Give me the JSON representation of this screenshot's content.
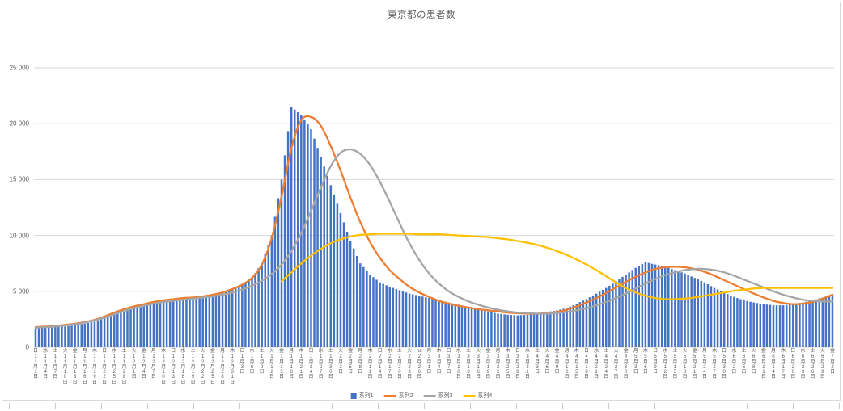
{
  "chart_data": {
    "type": "combo",
    "title": "東京都の患者数",
    "grid": true,
    "legend_position": "bottom",
    "ylim": [
      0,
      25000
    ],
    "y_tick_values": [
      0,
      5000,
      10000,
      15000,
      20000,
      25000
    ],
    "y_tick_labels": [
      "0",
      "5 000",
      "10 000",
      "15 000",
      "20 000",
      "25 000"
    ],
    "x_label_interval_days": 3,
    "x_labels_dow": [
      "日",
      "水",
      "土",
      "火",
      "金",
      "月",
      "木",
      "日",
      "水",
      "土",
      "火",
      "金",
      "月",
      "木",
      "日",
      "水",
      "土",
      "火",
      "金",
      "月",
      "木",
      "日",
      "水",
      "土",
      "火",
      "金",
      "月",
      "木",
      "日",
      "水",
      "土",
      "火",
      "金",
      "月",
      "木",
      "日",
      "水",
      "土",
      "火",
      "ha",
      "月",
      "木",
      "日",
      "水",
      "土",
      "火",
      "金",
      "月",
      "木",
      "日",
      "水",
      "土",
      "火",
      "金",
      "月",
      "木",
      "日",
      "水",
      "土",
      "火",
      "金",
      "月",
      "木",
      "日",
      "水",
      "土",
      "火",
      "金",
      "月",
      "木",
      "日",
      "水",
      "土",
      "火",
      "金",
      "月",
      "木",
      "日",
      "水",
      "土",
      "火",
      "金"
    ],
    "x_labels_date": [
      "11月1日",
      "11月4日",
      "11月7日",
      "11月10日",
      "11月13日",
      "11月16日",
      "11月19日",
      "11月22日",
      "11月25日",
      "11月28日",
      "12月1日",
      "12月4日",
      "12月7日",
      "12月10日",
      "12月13日",
      "12月16日",
      "12月19日",
      "12月22日",
      "12月25日",
      "12月28日",
      "12月31日",
      "1月3日",
      "1月6日",
      "1月9日",
      "1月12日",
      "1月15日",
      "1月18日",
      "1月21日",
      "1月24日",
      "1月27日",
      "1月30日",
      "2月2日",
      "2月5日",
      "2月8日",
      "2月11日",
      "2月14日",
      "2月17日",
      "2月20日",
      "2月23日",
      "2月26日",
      "3月1日",
      "3月4日",
      "3月7日",
      "3月10日",
      "3月13日",
      "3月16日",
      "3月19日",
      "3月22日",
      "3月25日",
      "3月28日",
      "3月31日",
      "4月3日",
      "4月6日",
      "4月9日",
      "4月12日",
      "4月15日",
      "4月18日",
      "4月21日",
      "4月24日",
      "4月27日",
      "4月30日",
      "5月3日",
      "5月6日",
      "5月9日",
      "5月12日",
      "5月15日",
      "5月18日",
      "5月21日",
      "5月24日",
      "5月27日",
      "5月30日",
      "6月2日",
      "6月5日",
      "6月8日",
      "6月11日",
      "6月14日",
      "6月17日",
      "6月20日",
      "6月23日",
      "6月26日",
      "6月29日",
      "7月2日"
    ],
    "series": [
      {
        "name": "系列1",
        "type": "bar",
        "color": "#4472C4",
        "values": [
          1700,
          1750,
          1800,
          1850,
          1950,
          2100,
          2300,
          2600,
          2950,
          3300,
          3600,
          3850,
          4050,
          4200,
          4300,
          4350,
          4450,
          4550,
          4700,
          4900,
          5200,
          5600,
          6200,
          7500,
          10000,
          15000,
          21500,
          20800,
          19500,
          17000,
          14500,
          12000,
          9500,
          7500,
          6500,
          5800,
          5400,
          5100,
          4800,
          4600,
          4400,
          4200,
          4000,
          3800,
          3600,
          3400,
          3200,
          3000,
          2900,
          2850,
          2900,
          3000,
          3150,
          3300,
          3500,
          3900,
          4300,
          4800,
          5300,
          5900,
          6500,
          7100,
          7600,
          7400,
          7200,
          6900,
          6600,
          6200,
          5800,
          5300,
          4900,
          4500,
          4200,
          4000,
          3850,
          3750,
          3750,
          3850,
          4000,
          4200,
          4450,
          4700
        ]
      },
      {
        "name": "系列2",
        "type": "line",
        "color": "#ED7D31",
        "values": [
          1800,
          1850,
          1900,
          2000,
          2100,
          2250,
          2450,
          2750,
          3100,
          3400,
          3650,
          3850,
          4050,
          4200,
          4300,
          4400,
          4450,
          4550,
          4700,
          4900,
          5200,
          5600,
          6200,
          7400,
          9800,
          13500,
          17800,
          20300,
          20600,
          19800,
          18000,
          15800,
          13400,
          11200,
          9400,
          8000,
          6900,
          6100,
          5400,
          4900,
          4500,
          4150,
          3900,
          3700,
          3550,
          3400,
          3300,
          3200,
          3100,
          3050,
          3000,
          3000,
          3050,
          3150,
          3350,
          3650,
          4000,
          4400,
          4850,
          5350,
          5850,
          6300,
          6700,
          7000,
          7150,
          7200,
          7150,
          7000,
          6750,
          6400,
          6000,
          5600,
          5200,
          4800,
          4450,
          4150,
          3950,
          3850,
          3900,
          4050,
          4350,
          4700
        ]
      },
      {
        "name": "系列3",
        "type": "line",
        "color": "#A5A5A5",
        "values": [
          1750,
          1800,
          1850,
          1950,
          2050,
          2200,
          2400,
          2650,
          2950,
          3250,
          3500,
          3700,
          3900,
          4050,
          4150,
          4250,
          4350,
          4450,
          4550,
          4700,
          4900,
          5150,
          5500,
          5950,
          6550,
          7400,
          8600,
          10200,
          12200,
          14300,
          16200,
          17400,
          17700,
          17300,
          16300,
          14800,
          13000,
          11100,
          9300,
          7800,
          6600,
          5700,
          5000,
          4500,
          4100,
          3800,
          3550,
          3350,
          3200,
          3100,
          3050,
          3000,
          3000,
          3050,
          3150,
          3300,
          3500,
          3750,
          4050,
          4400,
          4800,
          5250,
          5700,
          6100,
          6450,
          6700,
          6900,
          7000,
          7000,
          6900,
          6700,
          6400,
          6050,
          5700,
          5350,
          5000,
          4700,
          4450,
          4250,
          4150,
          4100,
          4100
        ]
      },
      {
        "name": "系列4",
        "type": "line",
        "color": "#FFC000",
        "values": [
          null,
          null,
          null,
          null,
          null,
          null,
          null,
          null,
          null,
          null,
          null,
          null,
          null,
          null,
          null,
          null,
          null,
          null,
          null,
          null,
          null,
          null,
          null,
          null,
          null,
          5900,
          6700,
          7500,
          8200,
          8800,
          9300,
          9650,
          9900,
          10050,
          10100,
          10150,
          10150,
          10150,
          10150,
          10100,
          10100,
          10100,
          10050,
          10000,
          9950,
          9900,
          9850,
          9750,
          9650,
          9500,
          9350,
          9150,
          8900,
          8600,
          8250,
          7850,
          7400,
          6900,
          6350,
          5800,
          5300,
          4900,
          4600,
          4400,
          4300,
          4300,
          4350,
          4450,
          4600,
          4750,
          4900,
          5050,
          5150,
          5250,
          5300,
          5300,
          5300,
          5300,
          5300,
          5300,
          5300,
          5300
        ]
      }
    ]
  }
}
